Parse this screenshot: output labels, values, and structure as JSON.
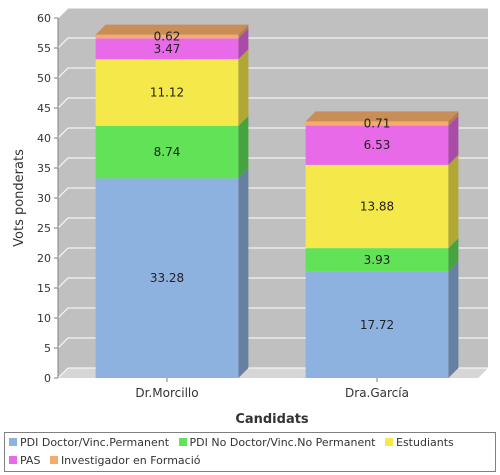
{
  "chart_data": {
    "type": "bar",
    "stacked": true,
    "style": "3d",
    "title": "",
    "xlabel": "Candidats",
    "ylabel": "Vots ponderats",
    "categories": [
      "Dr.Morcillo",
      "Dra.García"
    ],
    "ylim": [
      0,
      60
    ],
    "yticks": [
      0,
      5,
      10,
      15,
      20,
      25,
      30,
      35,
      40,
      45,
      50,
      55,
      60
    ],
    "grid": true,
    "legend_position": "bottom",
    "series": [
      {
        "name": "PDI Doctor/Vinc.Permanent",
        "values": [
          33.28,
          17.72
        ],
        "labels": [
          "33.28",
          "17.72"
        ],
        "color": "#8eb2e0"
      },
      {
        "name": "PDI No Doctor/Vinc.No Permanent",
        "values": [
          8.74,
          3.93
        ],
        "labels": [
          "8.74",
          "3.93"
        ],
        "color": "#62e357"
      },
      {
        "name": "Estudiants",
        "values": [
          11.12,
          13.88
        ],
        "labels": [
          "11.12",
          "13.88"
        ],
        "color": "#f5e84a"
      },
      {
        "name": "PAS",
        "values": [
          3.47,
          6.53
        ],
        "labels": [
          "3.47",
          "6.53"
        ],
        "color": "#e96ae8"
      },
      {
        "name": "Investigador en Formació",
        "values": [
          0.62,
          0.71
        ],
        "labels": [
          "0.62",
          "0.71"
        ],
        "color": "#f5ac6b"
      }
    ]
  }
}
